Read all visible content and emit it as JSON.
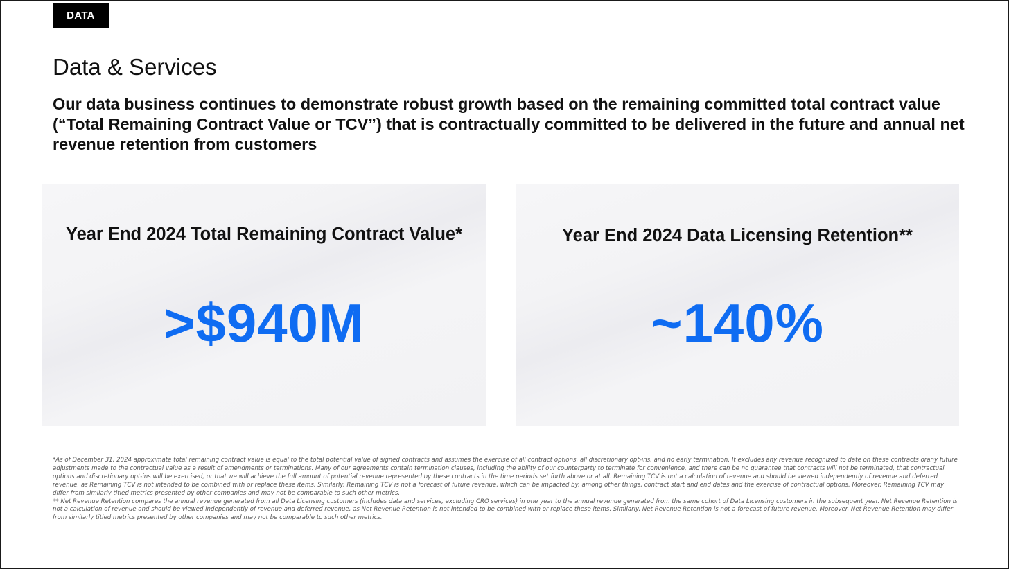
{
  "header": {
    "tag": "DATA",
    "section_title": "Data & Services",
    "headline": "Our data business continues to demonstrate robust growth based on the remaining committed total contract value (“Total Remaining Contract Value or TCV”) that is contractually committed to be delivered in the future and annual net revenue retention from customers"
  },
  "cards": [
    {
      "title": "Year End 2024 Total Remaining Contract Value*",
      "value": ">$940M"
    },
    {
      "title": "Year End 2024 Data Licensing Retention**",
      "value": "~140%"
    }
  ],
  "colors": {
    "accent": "#0f6cf2",
    "tag_background": "#000000"
  },
  "footnotes": {
    "tcv": "*As of December 31, 2024 approximate total remaining contract value is equal to the total potential value of signed contracts and assumes the exercise of all contract options, all discretionary opt-ins, and no early termination. It excludes any revenue recognized to date on these contracts orany future adjustments made to the contractual value as a result of amendments or terminations. Many of our agreements contain termination clauses, including the ability of our counterparty to terminate for convenience, and there can be no guarantee that contracts will not be terminated, that contractual options and discretionary opt-ins will be exercised, or that we will achieve the full amount of potential revenue represented by these contracts in the time periods set forth above or at all. Remaining TCV is not a calculation of revenue and should be viewed independently of revenue and deferred revenue, as Remaining TCV is not intended to be combined with or replace these items. Similarly, Remaining TCV is not a forecast of future revenue, which can be impacted by, among other things, contract start and end dates and the exercise of contractual options. Moreover, Remaining TCV may differ from similarly titled metrics presented by other companies and may not be comparable to such other metrics.",
    "nrr": "** Net Revenue Retention compares the annual revenue generated from all Data Licensing customers (includes data and services, excluding CRO services) in one year to the annual revenue generated from the same cohort of Data Licensing customers in the subsequent year. Net Revenue Retention is not a calculation of revenue and should be viewed independently of revenue and deferred revenue, as Net Revenue Retention is not intended to be combined with or replace these items. Similarly, Net Revenue Retention is not a forecast of future revenue. Moreover, Net Revenue Retention may differ from similarly titled metrics presented by other companies and may not be comparable to such other metrics."
  }
}
